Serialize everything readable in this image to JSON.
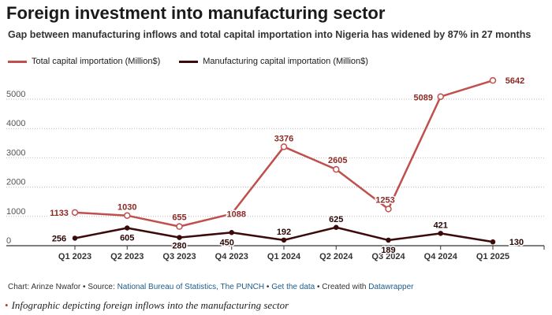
{
  "chart_data": {
    "type": "line",
    "title": "Foreign investment into manufacturing sector",
    "subtitle": "Gap between manufacturing inflows and total capital importation into Nigeria has widened by 87% in 27 months",
    "categories": [
      "Q1 2023",
      "Q2 2023",
      "Q3 2023",
      "Q4 2023",
      "Q1 2024",
      "Q2 2024",
      "Q3 2024",
      "Q4 2024",
      "Q1 2025"
    ],
    "series": [
      {
        "name": "Total capital importation (Million$)",
        "color": "#c0504d",
        "values": [
          1133,
          1030,
          655,
          1088,
          3376,
          2605,
          1253,
          5089,
          5642
        ]
      },
      {
        "name": "Manufacturing capital importation (Million$)",
        "color": "#3b0a0a",
        "values": [
          256,
          605,
          280,
          450,
          192,
          625,
          189,
          421,
          130
        ]
      }
    ],
    "y_ticks": [
      "0",
      "1000",
      "2000",
      "3000",
      "4000",
      "5000"
    ],
    "ylim": [
      0,
      5700
    ],
    "grid": "horizontal dotted",
    "legend_position": "top-left"
  },
  "footer": {
    "prefix": "Chart: Arinze Nwafor • Source: ",
    "source": "National Bureau of Statistics, The PUNCH",
    "sep1": " • ",
    "get_data": "Get the data",
    "sep2": " • Created with ",
    "tool": "Datawrapper"
  },
  "caption": "Infographic depicting foreign inflows into the manufacturing sector"
}
